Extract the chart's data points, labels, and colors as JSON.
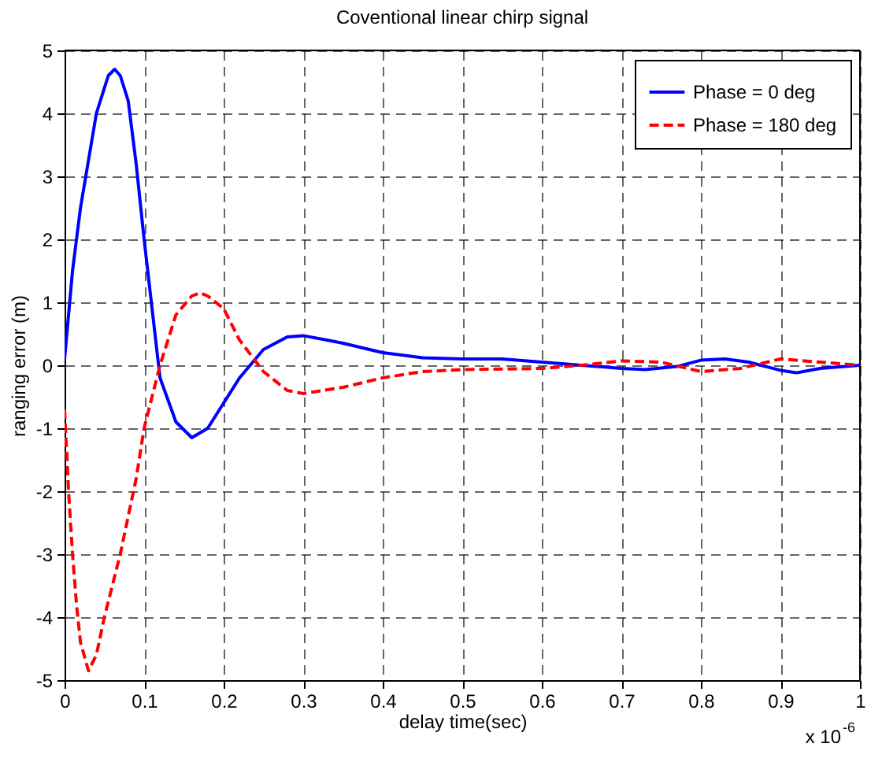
{
  "chart_data": {
    "type": "line",
    "title": "Coventional linear chirp signal",
    "xlabel": "delay time(sec)",
    "ylabel": "ranging error (m)",
    "annotations": [
      "x 10$^{-6}$"
    ],
    "xlim": [
      0,
      1
    ],
    "xticks": [
      0,
      0.1,
      0.2,
      0.3,
      0.4,
      0.5,
      0.6,
      0.7,
      0.8,
      0.9,
      1
    ],
    "ylim": [
      -5,
      5
    ],
    "yticks": [
      -5,
      -4,
      -3,
      -2,
      -1,
      0,
      1,
      2,
      3,
      4,
      5
    ],
    "grid": true,
    "legend": "top right",
    "series": [
      {
        "name": "Phase = 0 deg",
        "color": "#0000ff",
        "line_style": "solid",
        "x": [
          0,
          0.01,
          0.02,
          0.04,
          0.055,
          0.063,
          0.07,
          0.08,
          0.09,
          0.1,
          0.11,
          0.12,
          0.14,
          0.16,
          0.18,
          0.2,
          0.22,
          0.25,
          0.28,
          0.3,
          0.33,
          0.35,
          0.4,
          0.45,
          0.5,
          0.55,
          0.6,
          0.65,
          0.7,
          0.73,
          0.77,
          0.8,
          0.83,
          0.86,
          0.9,
          0.92,
          0.95,
          1
        ],
        "values": [
          0.1,
          1.5,
          2.5,
          4.0,
          4.6,
          4.7,
          4.6,
          4.2,
          3.2,
          2.0,
          0.9,
          -0.2,
          -0.9,
          -1.15,
          -1.0,
          -0.6,
          -0.2,
          0.25,
          0.45,
          0.47,
          0.4,
          0.35,
          0.2,
          0.12,
          0.1,
          0.1,
          0.05,
          0.0,
          -0.05,
          -0.07,
          -0.02,
          0.08,
          0.1,
          0.05,
          -0.08,
          -0.12,
          -0.05,
          0.0
        ]
      },
      {
        "name": "Phase = 180 deg",
        "color": "#ff0000",
        "line_style": "dashed",
        "x": [
          0,
          0.005,
          0.01,
          0.015,
          0.02,
          0.03,
          0.04,
          0.05,
          0.07,
          0.09,
          0.1,
          0.12,
          0.14,
          0.16,
          0.17,
          0.18,
          0.2,
          0.22,
          0.25,
          0.28,
          0.3,
          0.35,
          0.4,
          0.45,
          0.5,
          0.6,
          0.65,
          0.7,
          0.75,
          0.8,
          0.85,
          0.9,
          0.95,
          1
        ],
        "values": [
          -0.7,
          -2.0,
          -3.0,
          -3.8,
          -4.4,
          -4.85,
          -4.6,
          -4.0,
          -3.0,
          -1.8,
          -1.0,
          0.0,
          0.8,
          1.1,
          1.15,
          1.1,
          0.9,
          0.4,
          -0.1,
          -0.4,
          -0.45,
          -0.35,
          -0.2,
          -0.1,
          -0.07,
          -0.05,
          0.0,
          0.07,
          0.05,
          -0.1,
          -0.05,
          0.1,
          0.05,
          0.0
        ]
      }
    ]
  }
}
